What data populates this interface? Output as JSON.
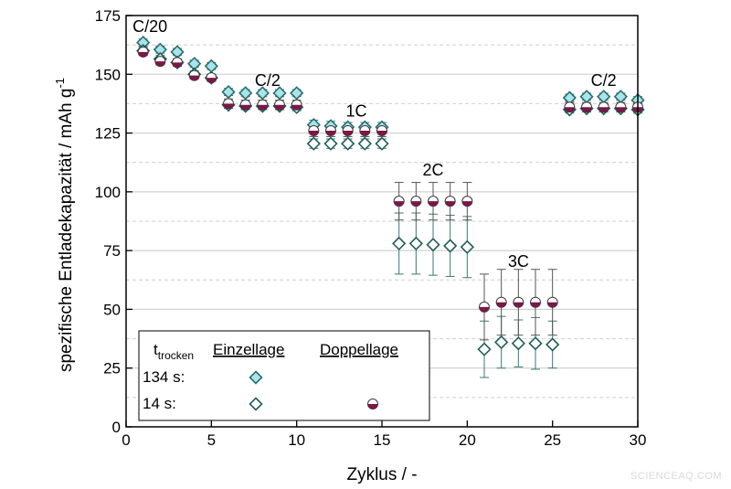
{
  "chart_data": {
    "type": "scatter",
    "xlabel": "Zyklus / -",
    "ylabel_main": "spezifische Entladekapazität / mAh g",
    "ylabel_sup": "-1",
    "xlim": [
      0,
      30
    ],
    "ylim": [
      0,
      175
    ],
    "xticks": [
      0,
      5,
      10,
      15,
      20,
      25,
      30
    ],
    "yticks": [
      0,
      25,
      50,
      75,
      100,
      125,
      150,
      175
    ],
    "grid": "dashed horizontal",
    "rate_labels": [
      {
        "text": "C/20",
        "x": 1.4,
        "y": 168
      },
      {
        "text": "C/2",
        "x": 8.3,
        "y": 145
      },
      {
        "text": "1C",
        "x": 13.5,
        "y": 132
      },
      {
        "text": "2C",
        "x": 18.0,
        "y": 107
      },
      {
        "text": "3C",
        "x": 23.0,
        "y": 68
      },
      {
        "text": "C/2",
        "x": 28.0,
        "y": 145
      }
    ],
    "legend": {
      "position": "bottom-left",
      "header_t": "t",
      "header_sub": "trocken",
      "col1": "Einzellage",
      "col2": "Doppellage",
      "row1": "134 s:",
      "row2": "14 s:"
    },
    "x": [
      1,
      2,
      3,
      4,
      5,
      6,
      7,
      8,
      9,
      10,
      11,
      12,
      13,
      14,
      15,
      16,
      17,
      18,
      19,
      20,
      21,
      22,
      23,
      24,
      25,
      26,
      27,
      28,
      29,
      30
    ],
    "series": [
      {
        "marker": "diamond-filled",
        "color": "#a8e4ec",
        "stroke": "#2e6e6c",
        "values": [
          163.5,
          160.5,
          159.5,
          154.5,
          153.5,
          142.5,
          142,
          142,
          142,
          142,
          128.5,
          128,
          127.5,
          127.5,
          127.5,
          null,
          null,
          null,
          null,
          null,
          null,
          null,
          null,
          null,
          null,
          140,
          140.5,
          140.5,
          140.5,
          139
        ],
        "errors": [
          1.5,
          1.5,
          1.5,
          1.5,
          1.5,
          1.5,
          1.5,
          1.5,
          1.5,
          1.5,
          2,
          2,
          2,
          2,
          2,
          null,
          null,
          null,
          null,
          null,
          null,
          null,
          null,
          null,
          null,
          1.5,
          1.5,
          1.5,
          1.5,
          1.5
        ]
      },
      {
        "marker": "diamond-open",
        "color": "#ffffff",
        "stroke": "#1f5e5a",
        "values": [
          160,
          156.5,
          155,
          150,
          148.5,
          137,
          136.5,
          136.5,
          136.5,
          136,
          120.5,
          120.5,
          120.5,
          120.5,
          120.5,
          78,
          78,
          77.5,
          77,
          76.5,
          33,
          36,
          35.5,
          35.5,
          35,
          135,
          135.5,
          135.5,
          135.5,
          135
        ],
        "errors": [
          1.5,
          1.5,
          1.5,
          1.5,
          1.5,
          1.5,
          1.5,
          1.5,
          1.5,
          1.5,
          2,
          2,
          2,
          2,
          2,
          13,
          13,
          13,
          13,
          13,
          12,
          11,
          10,
          11,
          10,
          1.5,
          1.5,
          1.5,
          1.5,
          1.5
        ]
      },
      {
        "marker": "circle-half",
        "color": "#7a1848",
        "stroke": "#3a3a3a",
        "values": [
          159.5,
          155.5,
          155,
          149.5,
          148.5,
          137.5,
          137,
          137,
          137,
          137,
          126,
          126,
          126,
          126,
          126,
          96,
          96,
          96,
          96,
          96,
          51,
          53,
          53,
          53,
          53,
          136,
          136,
          136,
          136,
          136
        ],
        "errors": [
          1.5,
          1.5,
          1.5,
          1.5,
          1.5,
          2,
          2,
          2,
          2,
          2,
          2.5,
          2.5,
          2.5,
          2.5,
          2.5,
          8,
          8,
          8,
          8,
          8,
          14,
          14,
          14,
          14,
          14,
          2,
          2,
          2,
          2,
          2
        ]
      }
    ]
  },
  "watermark": "SCIENCEAQ.COM"
}
